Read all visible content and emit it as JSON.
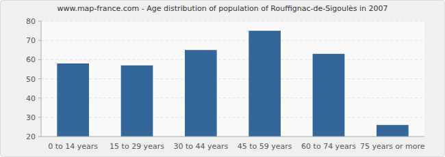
{
  "chart_data": {
    "type": "bar",
    "title": "www.map-france.com - Age distribution of population of Rouffignac-de-Sigoulès in 2007",
    "categories": [
      "0 to 14 years",
      "15 to 29 years",
      "30 to 44 years",
      "45 to 59 years",
      "60 to 74 years",
      "75 years or more"
    ],
    "values": [
      58,
      57,
      65,
      75,
      63,
      26
    ],
    "color": "#336699",
    "ylim": [
      20,
      80
    ],
    "yticks": [
      20,
      30,
      40,
      50,
      60,
      70,
      80
    ],
    "grid": true
  }
}
